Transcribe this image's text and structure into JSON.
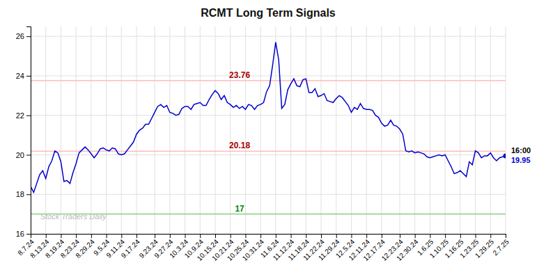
{
  "chart_data": {
    "type": "line",
    "title": "RCMT Long Term Signals",
    "color": "#0000cc",
    "grid": true,
    "ylim": [
      16,
      26.5
    ],
    "yticks": [
      16,
      18,
      20,
      22,
      24,
      26
    ],
    "categories": [
      "8.7.24",
      null,
      null,
      null,
      null,
      "8.13.24",
      null,
      null,
      null,
      null,
      "8.19.24",
      null,
      null,
      null,
      null,
      "8.23.24",
      null,
      null,
      null,
      null,
      "8.29.24",
      null,
      null,
      null,
      null,
      "9.5.24",
      null,
      null,
      null,
      null,
      "9.11.24",
      null,
      null,
      null,
      null,
      "9.17.24",
      null,
      null,
      null,
      null,
      null,
      "9.23.24",
      null,
      null,
      null,
      null,
      "9.27.24",
      null,
      null,
      null,
      null,
      "10.3.24",
      null,
      null,
      null,
      null,
      "10.9.24",
      null,
      null,
      null,
      null,
      "10.15.24",
      null,
      null,
      null,
      null,
      "10.21.24",
      null,
      null,
      null,
      null,
      "10.25.24",
      null,
      null,
      null,
      null,
      "10.31.24",
      null,
      null,
      null,
      null,
      "11.6.24",
      null,
      null,
      null,
      null,
      "11.12.24",
      null,
      null,
      null,
      null,
      "11.18.24",
      null,
      null,
      null,
      null,
      "11.22.24",
      null,
      null,
      null,
      null,
      "11.29.24",
      null,
      null,
      null,
      null,
      "12.5.24",
      null,
      null,
      null,
      null,
      "12.11.24",
      null,
      null,
      null,
      null,
      "12.17.24",
      null,
      null,
      null,
      null,
      null,
      "12.23.24",
      null,
      null,
      null,
      null,
      "12.30.24",
      null,
      null,
      null,
      null,
      "1.6.25",
      null,
      null,
      null,
      null,
      "1.10.25",
      null,
      null,
      null,
      null,
      "1.16.25",
      null,
      null,
      null,
      null,
      "1.23.25",
      null,
      null,
      null,
      null,
      "1.29.25",
      null,
      null,
      null,
      null,
      "2.7.25"
    ],
    "values": [
      18.4,
      18.1,
      18.55,
      19.0,
      19.2,
      18.8,
      19.4,
      19.7,
      20.2,
      20.1,
      19.65,
      18.65,
      18.7,
      18.55,
      19.1,
      19.55,
      20.1,
      20.25,
      20.4,
      20.25,
      20.05,
      19.85,
      20.05,
      20.3,
      20.35,
      20.25,
      20.2,
      20.35,
      20.3,
      20.05,
      20.0,
      20.05,
      20.25,
      20.45,
      20.65,
      21.05,
      21.25,
      21.35,
      21.55,
      21.55,
      21.85,
      22.15,
      22.45,
      22.55,
      22.4,
      22.5,
      22.15,
      22.1,
      22.0,
      22.05,
      22.35,
      22.45,
      22.45,
      22.3,
      22.55,
      22.6,
      22.65,
      22.5,
      22.5,
      22.8,
      23.05,
      23.25,
      23.1,
      22.8,
      23.0,
      22.65,
      22.55,
      22.4,
      22.5,
      22.35,
      22.45,
      22.3,
      22.55,
      22.5,
      22.3,
      22.5,
      22.55,
      22.65,
      23.2,
      23.5,
      24.55,
      25.7,
      24.8,
      22.35,
      22.55,
      23.3,
      23.6,
      23.85,
      23.5,
      23.45,
      23.8,
      23.85,
      23.15,
      23.15,
      23.35,
      22.95,
      23.0,
      23.1,
      22.75,
      22.7,
      22.65,
      22.85,
      23.0,
      22.9,
      22.7,
      22.5,
      22.15,
      22.4,
      22.3,
      22.6,
      22.35,
      22.3,
      22.3,
      22.25,
      22.0,
      21.9,
      21.6,
      21.45,
      21.5,
      21.75,
      21.5,
      21.45,
      21.3,
      21.05,
      20.2,
      20.15,
      20.2,
      20.1,
      20.15,
      20.1,
      20.05,
      19.9,
      19.85,
      19.9,
      19.95,
      20.0,
      19.95,
      20.0,
      19.7,
      19.4,
      19.05,
      19.1,
      19.2,
      19.05,
      18.9,
      19.65,
      19.5,
      20.2,
      20.1,
      19.85,
      19.95,
      19.95,
      20.1,
      19.85,
      19.7,
      19.85,
      19.9,
      19.95
    ],
    "reference_lines": [
      {
        "value": 23.76,
        "color": "#ffbbbb",
        "label": "23.76",
        "label_color": "#aa0000"
      },
      {
        "value": 20.18,
        "color": "#ffbbbb",
        "label": "20.18",
        "label_color": "#aa0000"
      },
      {
        "value": 17,
        "color": "#88cc88",
        "label": "17",
        "label_color": "#008800"
      }
    ],
    "annotations": [
      {
        "text": "16:00",
        "color": "#000000"
      },
      {
        "text": "19.95",
        "color": "#0000cc"
      },
      {
        "text": "Stock Traders Daily",
        "color": "#bbbbbb"
      }
    ]
  }
}
